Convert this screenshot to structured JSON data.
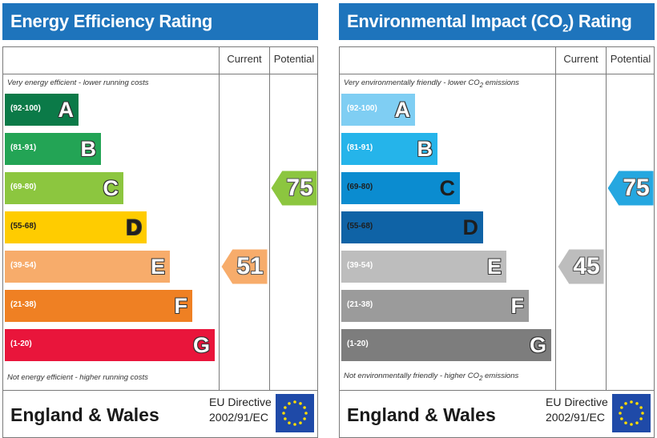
{
  "chart_data": [
    {
      "type": "table",
      "title": "Energy Efficiency Rating",
      "columns": [
        "Current",
        "Potential"
      ],
      "top_note": "Very energy efficient - lower running costs",
      "bottom_note": "Not energy efficient - higher running costs",
      "bands": [
        {
          "range": "(92-100)",
          "letter": "A",
          "color": "#0b7a48"
        },
        {
          "range": "(81-91)",
          "letter": "B",
          "color": "#23a455"
        },
        {
          "range": "(69-80)",
          "letter": "C",
          "color": "#8cc63f"
        },
        {
          "range": "(55-68)",
          "letter": "D",
          "color": "#ffcc00"
        },
        {
          "range": "(39-54)",
          "letter": "E",
          "color": "#f7ac6b"
        },
        {
          "range": "(21-38)",
          "letter": "F",
          "color": "#ef8023"
        },
        {
          "range": "(1-20)",
          "letter": "G",
          "color": "#e9153b"
        }
      ],
      "current": {
        "value": 51,
        "band": "E",
        "color": "#f7ac6b"
      },
      "potential": {
        "value": 75,
        "band": "C",
        "color": "#8cc63f"
      },
      "country": "England & Wales",
      "directive_line1": "EU Directive",
      "directive_line2": "2002/91/EC",
      "header_color": "#1e74bc"
    },
    {
      "type": "table",
      "title_main": "Environmental Impact (CO",
      "title_sub": "2",
      "title_end": ") Rating",
      "columns": [
        "Current",
        "Potential"
      ],
      "top_note_main": "Very environmentally friendly - lower CO",
      "top_note_sub": "2",
      "top_note_end": " emissions",
      "bottom_note_main": "Not environmentally friendly - higher CO",
      "bottom_note_sub": "2",
      "bottom_note_end": " emissions",
      "bands": [
        {
          "range": "(92-100)",
          "letter": "A",
          "color": "#7fcef3"
        },
        {
          "range": "(81-91)",
          "letter": "B",
          "color": "#25b4ea"
        },
        {
          "range": "(69-80)",
          "letter": "C",
          "color": "#0b8cd0"
        },
        {
          "range": "(55-68)",
          "letter": "D",
          "color": "#0f63a6"
        },
        {
          "range": "(39-54)",
          "letter": "E",
          "color": "#bdbdbd"
        },
        {
          "range": "(21-38)",
          "letter": "F",
          "color": "#9b9b9b"
        },
        {
          "range": "(1-20)",
          "letter": "G",
          "color": "#7d7d7d"
        }
      ],
      "current": {
        "value": 45,
        "band": "E",
        "color": "#bdbdbd"
      },
      "potential": {
        "value": 75,
        "band": "C",
        "color": "#25a7e0"
      },
      "country": "England & Wales",
      "directive_line1": "EU Directive",
      "directive_line2": "2002/91/EC",
      "header_color": "#1e74bc"
    }
  ],
  "icons": {
    "flag": "eu-flag-icon",
    "arrow": "arrow-left-marker"
  }
}
